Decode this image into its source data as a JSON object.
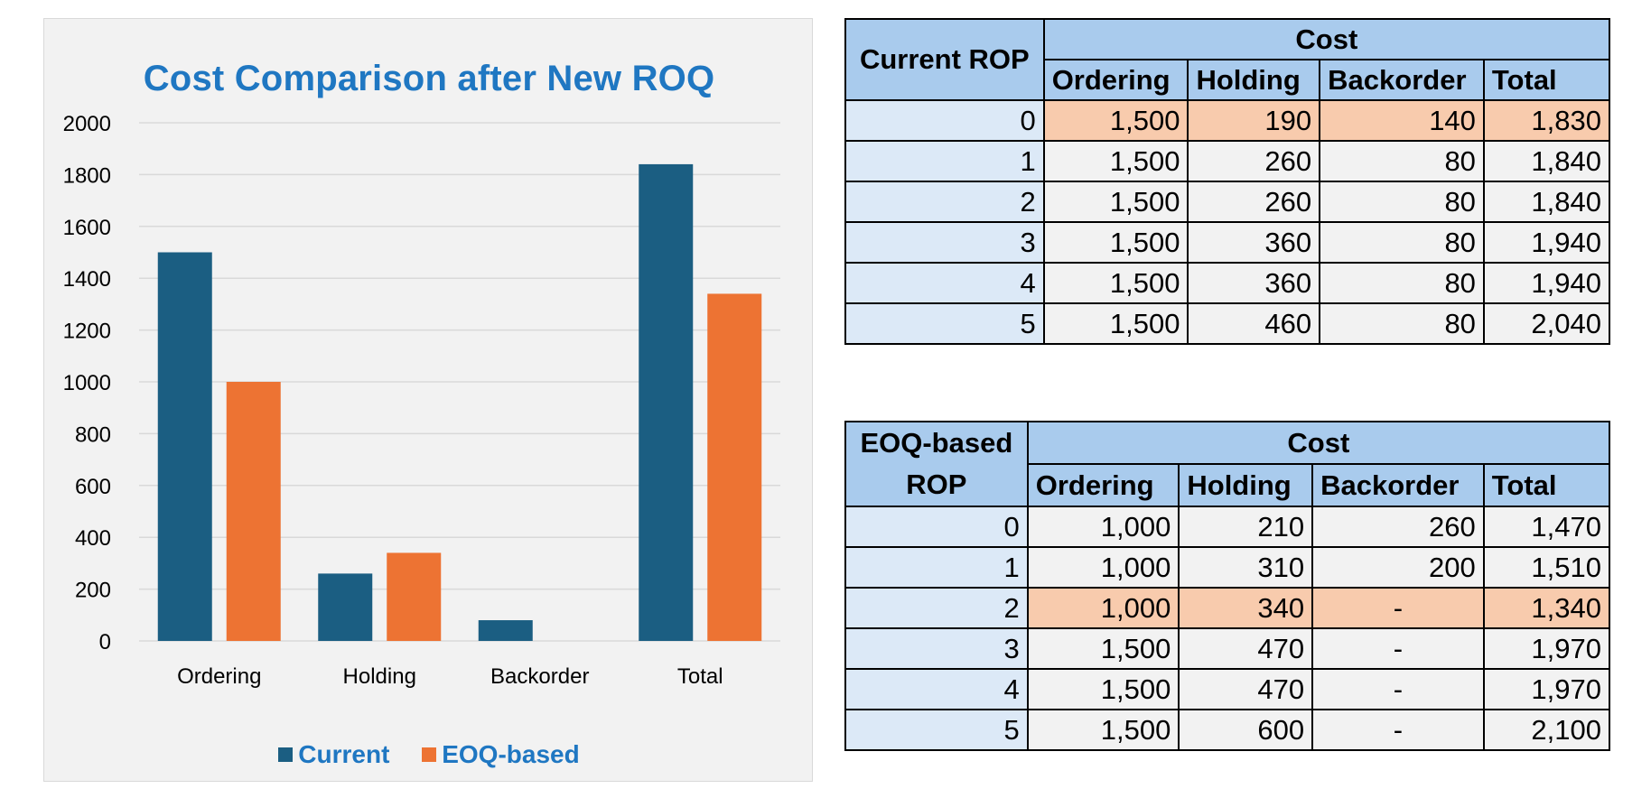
{
  "chart_data": {
    "type": "bar",
    "title": "Cost Comparison after New ROQ",
    "categories": [
      "Ordering",
      "Holding",
      "Backorder",
      "Total"
    ],
    "series": [
      {
        "name": "Current",
        "color": "#1b5e82",
        "values": [
          1500,
          260,
          80,
          1840
        ]
      },
      {
        "name": "EOQ-based",
        "color": "#ed7333",
        "values": [
          1000,
          340,
          0,
          1340
        ]
      }
    ],
    "ylim": [
      0,
      2000
    ],
    "yticks": [
      0,
      200,
      400,
      600,
      800,
      1000,
      1200,
      1400,
      1600,
      1800,
      2000
    ],
    "grid": true,
    "legend_position": "bottom"
  },
  "current_table": {
    "rop_header": "Current ROP",
    "group_header": "Cost",
    "columns": [
      "Ordering",
      "Holding",
      "Backorder",
      "Total"
    ],
    "rows": [
      {
        "rop": "0",
        "cells": [
          "1,500",
          "190",
          "140",
          "1,830"
        ],
        "highlight": true
      },
      {
        "rop": "1",
        "cells": [
          "1,500",
          "260",
          "80",
          "1,840"
        ],
        "highlight": false
      },
      {
        "rop": "2",
        "cells": [
          "1,500",
          "260",
          "80",
          "1,840"
        ],
        "highlight": false
      },
      {
        "rop": "3",
        "cells": [
          "1,500",
          "360",
          "80",
          "1,940"
        ],
        "highlight": false
      },
      {
        "rop": "4",
        "cells": [
          "1,500",
          "360",
          "80",
          "1,940"
        ],
        "highlight": false
      },
      {
        "rop": "5",
        "cells": [
          "1,500",
          "460",
          "80",
          "2,040"
        ],
        "highlight": false
      }
    ]
  },
  "eoq_table": {
    "rop_header_line1": "EOQ-based",
    "rop_header_line2": "ROP",
    "group_header": "Cost",
    "columns": [
      "Ordering",
      "Holding",
      "Backorder",
      "Total"
    ],
    "rows": [
      {
        "rop": "0",
        "cells": [
          "1,000",
          "210",
          "260",
          "1,470"
        ],
        "highlight": false
      },
      {
        "rop": "1",
        "cells": [
          "1,000",
          "310",
          "200",
          "1,510"
        ],
        "highlight": false
      },
      {
        "rop": "2",
        "cells": [
          "1,000",
          "340",
          "-",
          "1,340"
        ],
        "highlight": true
      },
      {
        "rop": "3",
        "cells": [
          "1,500",
          "470",
          "-",
          "1,970"
        ],
        "highlight": false
      },
      {
        "rop": "4",
        "cells": [
          "1,500",
          "470",
          "-",
          "1,970"
        ],
        "highlight": false
      },
      {
        "rop": "5",
        "cells": [
          "1,500",
          "600",
          "-",
          "2,100"
        ],
        "highlight": false
      }
    ]
  },
  "colors": {
    "header_bg": "#a9cbed",
    "rop_bg": "#dce9f7",
    "highlight_bg": "#f8cbad",
    "title_color": "#1f77c2"
  }
}
